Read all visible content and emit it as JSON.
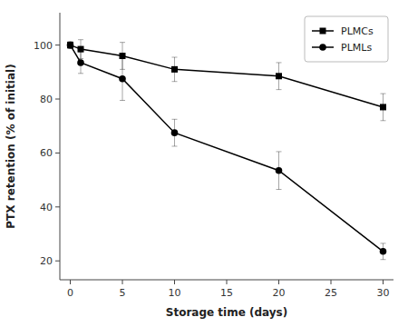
{
  "chart_data": {
    "type": "line",
    "x": [
      0,
      1,
      5,
      10,
      20,
      30
    ],
    "series": [
      {
        "name": "PLMCs",
        "color": "#000000",
        "marker": "square",
        "values": [
          100,
          98.5,
          96,
          91,
          88.5,
          77
        ],
        "errors": [
          1.2,
          3.5,
          5,
          4.5,
          5,
          5
        ]
      },
      {
        "name": "PLMLs",
        "color": "#000000",
        "marker": "circle",
        "values": [
          100,
          93.5,
          87.5,
          67.5,
          53.5,
          23.5
        ],
        "errors": [
          1.2,
          4,
          8,
          5,
          7,
          3
        ]
      }
    ],
    "xlabel": "Storage time (days)",
    "ylabel": "PTX retention (% of initial)",
    "xlim": [
      -1,
      31
    ],
    "ylim": [
      13,
      112
    ],
    "xticks": [
      0,
      5,
      10,
      15,
      20,
      25,
      30
    ],
    "yticks": [
      20,
      40,
      60,
      80,
      100
    ],
    "grid": false,
    "legend": "upper right"
  }
}
